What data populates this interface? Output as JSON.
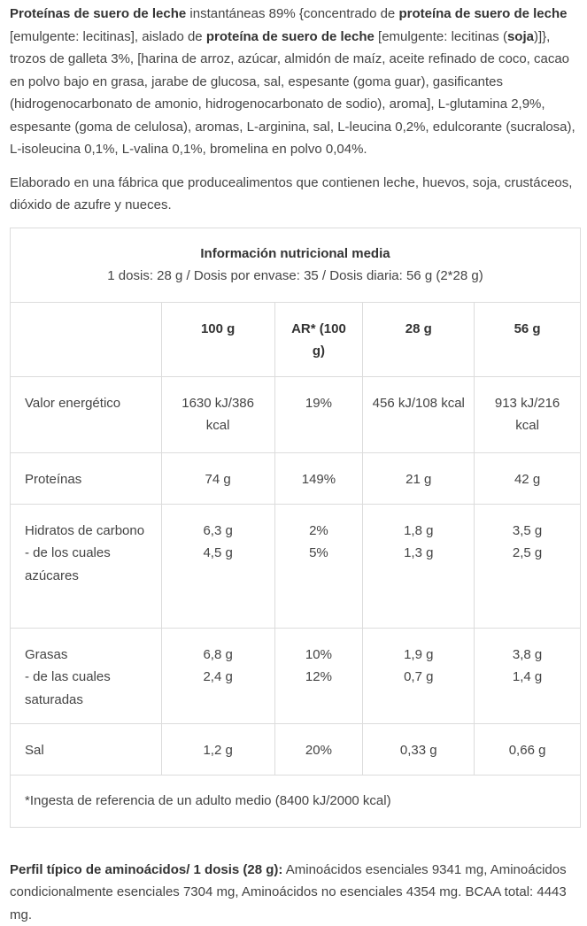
{
  "ingredients": [
    {
      "text": "Proteínas de suero de leche",
      "bold": true
    },
    {
      "text": " instantáneas 89% {concentrado de ",
      "bold": false
    },
    {
      "text": "proteína de suero de leche",
      "bold": true
    },
    {
      "text": " [emulgente: lecitinas], aislado de ",
      "bold": false
    },
    {
      "text": "proteína de suero de leche",
      "bold": true
    },
    {
      "text": " [emulgente: lecitinas (",
      "bold": false
    },
    {
      "text": "soja",
      "bold": true
    },
    {
      "text": ")]}, trozos de galleta 3%, [harina de arroz, azúcar, almidón de maíz, aceite refinado de coco, cacao en polvo bajo en grasa, jarabe de glucosa, sal, espesante (goma guar), gasificantes (hidrogenocarbonato de amonio, hidrogenocarbonato de sodio), aroma], L-glutamina 2,9%, espesante (goma de celulosa), aromas, L-arginina, sal, L-leucina 0,2%, edulcorante (sucralosa), L-isoleucina 0,1%, L-valina 0,1%, bromelina en polvo 0,04%.",
      "bold": false
    }
  ],
  "allergens": "Elaborado en una fábrica que producealimentos que contienen leche, huevos, soja, crustáceos, dióxido de azufre y nueces.",
  "table": {
    "title": "Información nutricional media",
    "subtitle": "1 dosis: 28 g / Dosis por envase: 35 / Dosis diaria: 56 g (2*28 g)",
    "columns": [
      "100 g",
      "AR* (100 g)",
      "28 g",
      "56 g"
    ],
    "rows": [
      [
        [
          "Valor energético"
        ],
        [
          "1630 kJ/386 kcal"
        ],
        [
          "19%"
        ],
        [
          "456 kJ/108 kcal"
        ],
        [
          "913 kJ/216 kcal"
        ]
      ],
      [
        [
          "Proteínas"
        ],
        [
          "74 g"
        ],
        [
          "149%"
        ],
        [
          "21 g"
        ],
        [
          "42 g"
        ]
      ],
      [
        [
          "Hidratos de carbono",
          "- de los cuales azúcares"
        ],
        [
          "6,3 g",
          "4,5 g"
        ],
        [
          "2%",
          "5%"
        ],
        [
          "1,8 g",
          "1,3 g"
        ],
        [
          "3,5 g",
          "2,5 g"
        ]
      ],
      [
        [
          "Grasas",
          "- de las cuales saturadas"
        ],
        [
          "6,8 g",
          "2,4 g"
        ],
        [
          "10%",
          "12%"
        ],
        [
          "1,9 g",
          "0,7 g"
        ],
        [
          "3,8 g",
          "1,4 g"
        ]
      ],
      [
        [
          "Sal"
        ],
        [
          "1,2 g"
        ],
        [
          "20%"
        ],
        [
          "0,33 g"
        ],
        [
          "0,66 g"
        ]
      ]
    ],
    "footnote": "*Ingesta de referencia de un adulto medio (8400 kJ/2000 kcal)"
  },
  "amino": [
    {
      "text": "Perfil típico de aminoácidos/ 1 dosis (28 g):",
      "bold": true
    },
    {
      "text": " Aminoácidos esenciales 9341 mg, Aminoácidos condicionalmente esenciales 7304 mg, Aminoácidos no esenciales 4354 mg. BCAA total: 4443 mg.",
      "bold": false
    }
  ]
}
